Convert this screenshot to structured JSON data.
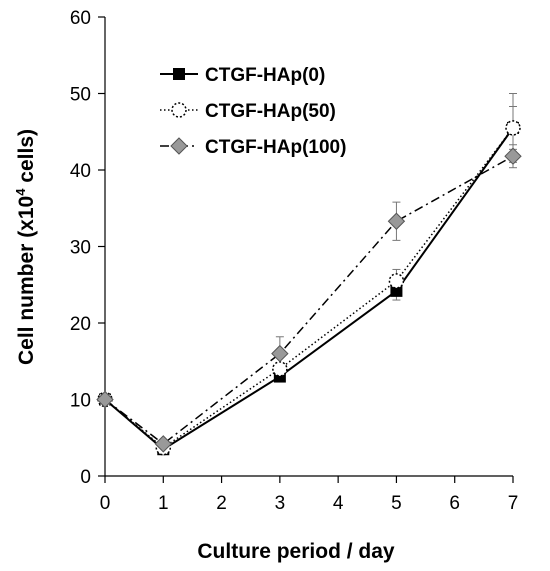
{
  "chart_data": {
    "type": "line",
    "title": "",
    "xlabel": "Culture period / day",
    "ylabel": "Cell number (x10",
    "ylabel_sup": "4",
    "ylabel_end": " cells)",
    "xlim": [
      0,
      7
    ],
    "ylim": [
      0,
      60
    ],
    "xticks": [
      "0",
      "1",
      "2",
      "3",
      "4",
      "5",
      "6",
      "7"
    ],
    "yticks": [
      "0",
      "10",
      "20",
      "30",
      "40",
      "50",
      "60"
    ],
    "grid": false,
    "legend_position": "top-left",
    "x": [
      0,
      1,
      3,
      5,
      7
    ],
    "series": [
      {
        "name": "CTGF-HAp(0)",
        "values": [
          10,
          3.5,
          13,
          24.2,
          45.5
        ],
        "errors": [
          0,
          0.4,
          0.6,
          1.2,
          2.8
        ],
        "marker": "square",
        "marker_fill": "#000000",
        "line_style": "solid"
      },
      {
        "name": "CTGF-HAp(50)",
        "values": [
          10,
          3.7,
          14,
          25.5,
          45.5
        ],
        "errors": [
          0,
          0.4,
          0.8,
          1.5,
          4.5
        ],
        "marker": "circle",
        "marker_fill": "#ffffff",
        "line_style": "dotted"
      },
      {
        "name": "CTGF-HAp(100)",
        "values": [
          10,
          4.2,
          16,
          33.3,
          41.8
        ],
        "errors": [
          0,
          0.5,
          2.2,
          2.5,
          1.5
        ],
        "marker": "diamond",
        "marker_fill": "#999999",
        "line_style": "dash-dot"
      }
    ]
  }
}
